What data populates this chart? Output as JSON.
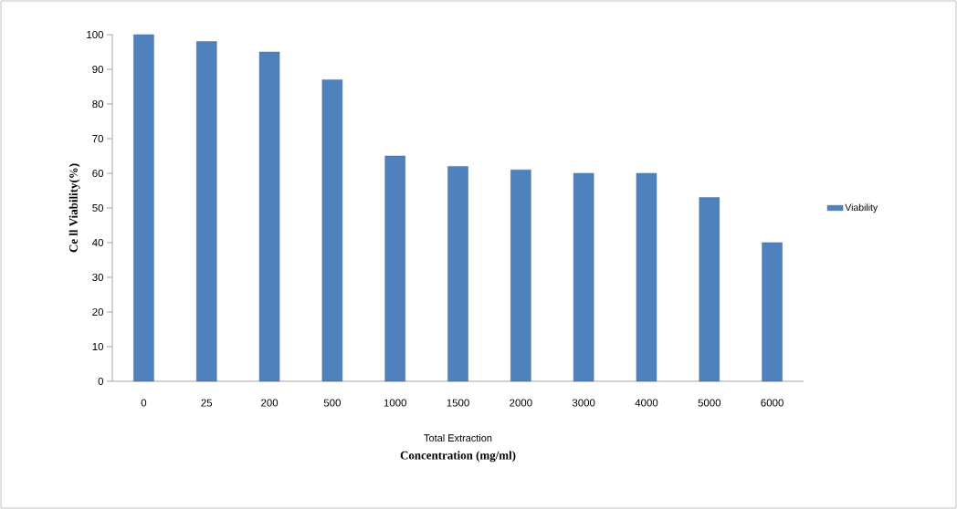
{
  "chart_data": {
    "type": "bar",
    "ylabel": "Ce ll Viability(%)",
    "xlabel": "Concentration (mg/ml)",
    "annotations": [
      "Total Extraction"
    ],
    "categories": [
      "0",
      "25",
      "200",
      "500",
      "1000",
      "1500",
      "2000",
      "3000",
      "4000",
      "5000",
      "6000"
    ],
    "series": [
      {
        "name": "Viability",
        "color": "#4f81bd",
        "values": [
          100,
          98,
          95,
          87,
          65,
          62,
          61,
          60,
          60,
          53,
          40
        ]
      }
    ],
    "ylim": [
      0,
      100
    ],
    "yticks": [
      0,
      10,
      20,
      30,
      40,
      50,
      60,
      70,
      80,
      90,
      100
    ],
    "grid": false,
    "legend": "right"
  }
}
